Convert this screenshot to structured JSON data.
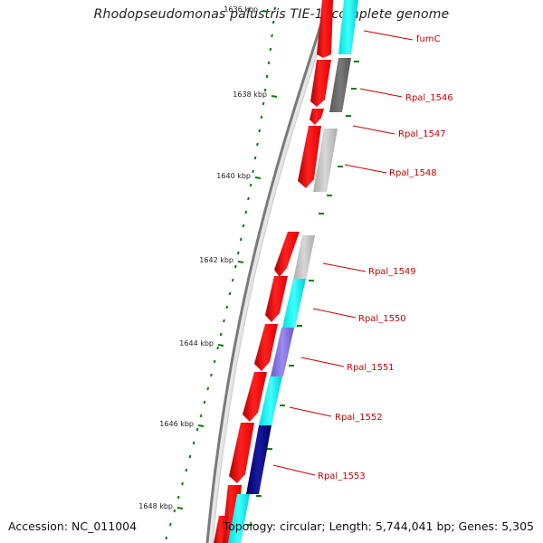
{
  "title": "Rhodopseudomonas palustris TIE-1, complete genome",
  "footer": {
    "accession": "Accession: NC_011004",
    "summary": "Topology: circular; Length: 5,744,041 bp; Genes: 5,305"
  },
  "ticks": [
    {
      "label": "1636 kbp",
      "faded": true
    },
    {
      "label": "1638 kbp"
    },
    {
      "label": "1640 kbp"
    },
    {
      "label": "1642 kbp"
    },
    {
      "label": "1644 kbp"
    },
    {
      "label": "1646 kbp"
    },
    {
      "label": "1648 kbp"
    }
  ],
  "genes": [
    {
      "name": "fumC"
    },
    {
      "name": "Rpal_1546"
    },
    {
      "name": "Rpal_1547"
    },
    {
      "name": "Rpal_1548"
    },
    {
      "name": "Rpal_1549"
    },
    {
      "name": "Rpal_1550"
    },
    {
      "name": "Rpal_1551"
    },
    {
      "name": "Rpal_1552"
    },
    {
      "name": "Rpal_1553"
    }
  ],
  "colors": {
    "backbone": "#808080",
    "gene_red": "#ff0000",
    "cyan": "#00ffff",
    "dark_gray": "#666666",
    "light_gray": "#c0c0c0",
    "purple": "#7b68ee",
    "navy": "#000080",
    "tick_green": "#008000",
    "label_red": "#cc0000"
  }
}
